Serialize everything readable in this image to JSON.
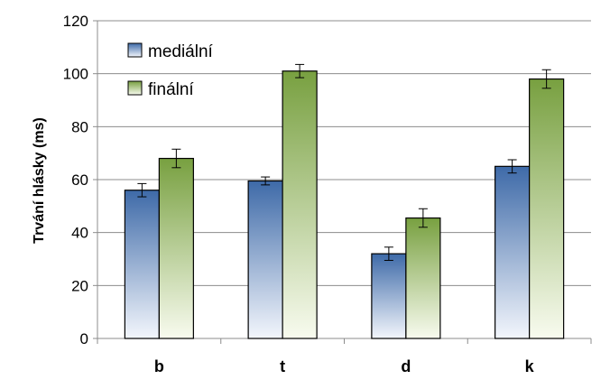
{
  "chart_data": {
    "type": "bar",
    "categories": [
      "b",
      "t",
      "d",
      "k"
    ],
    "series": [
      {
        "name": "mediální",
        "values": [
          56,
          59.5,
          32,
          65
        ],
        "errors": [
          2.5,
          1.5,
          2.5,
          2.5
        ],
        "color_top": "#3e6aa8",
        "color_bottom": "#f3f6fc"
      },
      {
        "name": "finální",
        "values": [
          68,
          101,
          45.5,
          98
        ],
        "errors": [
          3.5,
          2.5,
          3.5,
          3.5
        ],
        "color_top": "#78a040",
        "color_bottom": "#f8fbef"
      }
    ],
    "title": "",
    "xlabel": "",
    "ylabel": "Trvání hlásky (ms)",
    "ylim": [
      0,
      120
    ],
    "yticks": [
      0,
      20,
      40,
      60,
      80,
      100,
      120
    ],
    "grid": true,
    "legend_position": "top-left"
  }
}
